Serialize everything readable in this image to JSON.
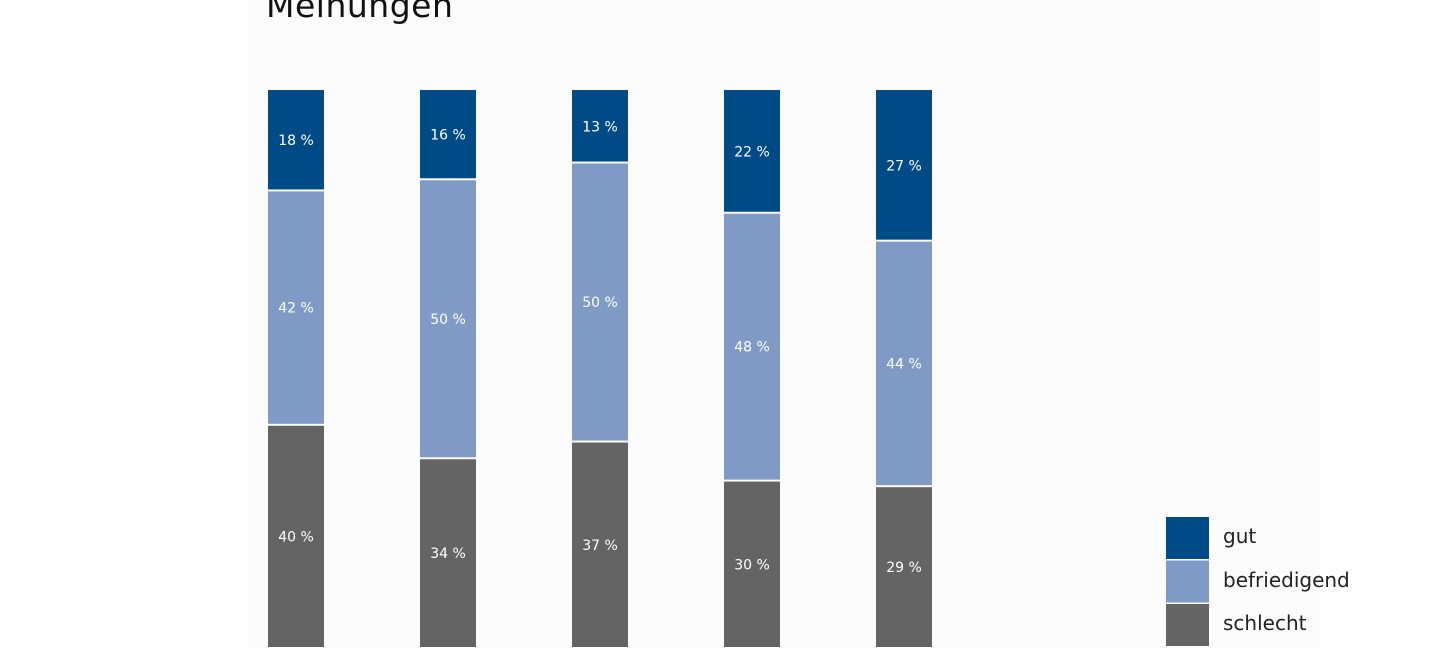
{
  "chart_data": {
    "type": "bar",
    "stacked": true,
    "title": "Meinungen",
    "categories": [
      "",
      "",
      "",
      "",
      ""
    ],
    "series": [
      {
        "name": "gut",
        "color": "#004a87",
        "values": [
          18,
          16,
          13,
          22,
          27
        ]
      },
      {
        "name": "befriedigend",
        "color": "#7f9bc5",
        "values": [
          42,
          50,
          50,
          48,
          44
        ]
      },
      {
        "name": "schlecht",
        "color": "#646464",
        "values": [
          40,
          34,
          37,
          30,
          29
        ]
      }
    ],
    "value_suffix": " %",
    "ylim": [
      0,
      100
    ],
    "grid": false,
    "legend_position": "bottom-right"
  }
}
